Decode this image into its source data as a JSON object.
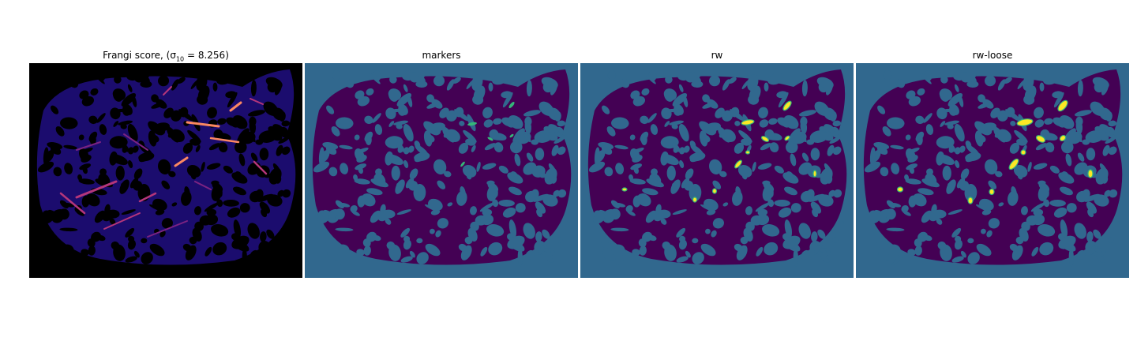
{
  "figure": {
    "panels": [
      {
        "id": "frangi",
        "title": "Frangi score, ",
        "title_math": "(σ",
        "title_sub": "10",
        "title_rest": " = 8.256)",
        "colormap": "magma",
        "background": "#000000"
      },
      {
        "id": "markers",
        "title": "markers",
        "colormap": "viridis",
        "background": "#31688e"
      },
      {
        "id": "rw",
        "title": "rw",
        "colormap": "viridis",
        "background": "#31688e"
      },
      {
        "id": "rw-loose",
        "title": "rw-loose",
        "colormap": "viridis",
        "background": "#31688e"
      }
    ],
    "colors": {
      "tissue_dark": "#440154",
      "teal_bg": "#31688e",
      "marker_green": "#35b779",
      "label_yellow": "#fde725",
      "frangi_blue": "#1b0c6e",
      "frangi_magenta": "#b5367a",
      "frangi_orange": "#fb8861"
    }
  }
}
